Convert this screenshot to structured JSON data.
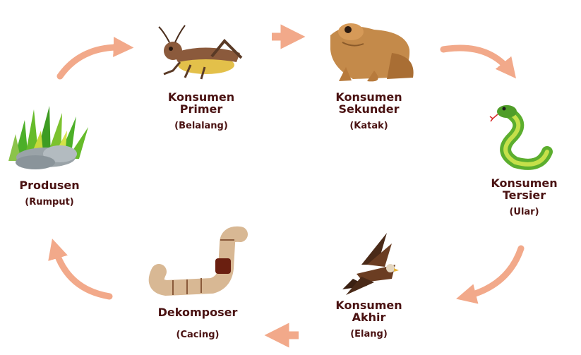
{
  "stages": {
    "producer": {
      "name": [
        "Produsen"
      ],
      "sub": "(Rumput)",
      "icon": "grass-icon"
    },
    "primary": {
      "name": [
        "Konsumen",
        "Primer"
      ],
      "sub": "(Belalang)",
      "icon": "grasshopper-icon"
    },
    "secondary": {
      "name": [
        "Konsumen",
        "Sekunder"
      ],
      "sub": "(Katak)",
      "icon": "frog-icon"
    },
    "tertiary": {
      "name": [
        "Konsumen",
        "Tersier"
      ],
      "sub": "(Ular)",
      "icon": "snake-icon"
    },
    "apex": {
      "name": [
        "Konsumen",
        "Akhir"
      ],
      "sub": "(Elang)",
      "icon": "eagle-icon"
    },
    "decomposer": {
      "name": [
        "Dekomposer"
      ],
      "sub": "(Cacing)",
      "icon": "worm-icon"
    }
  },
  "colors": {
    "text": "#4a1212",
    "arrow": "#f2a98a"
  }
}
